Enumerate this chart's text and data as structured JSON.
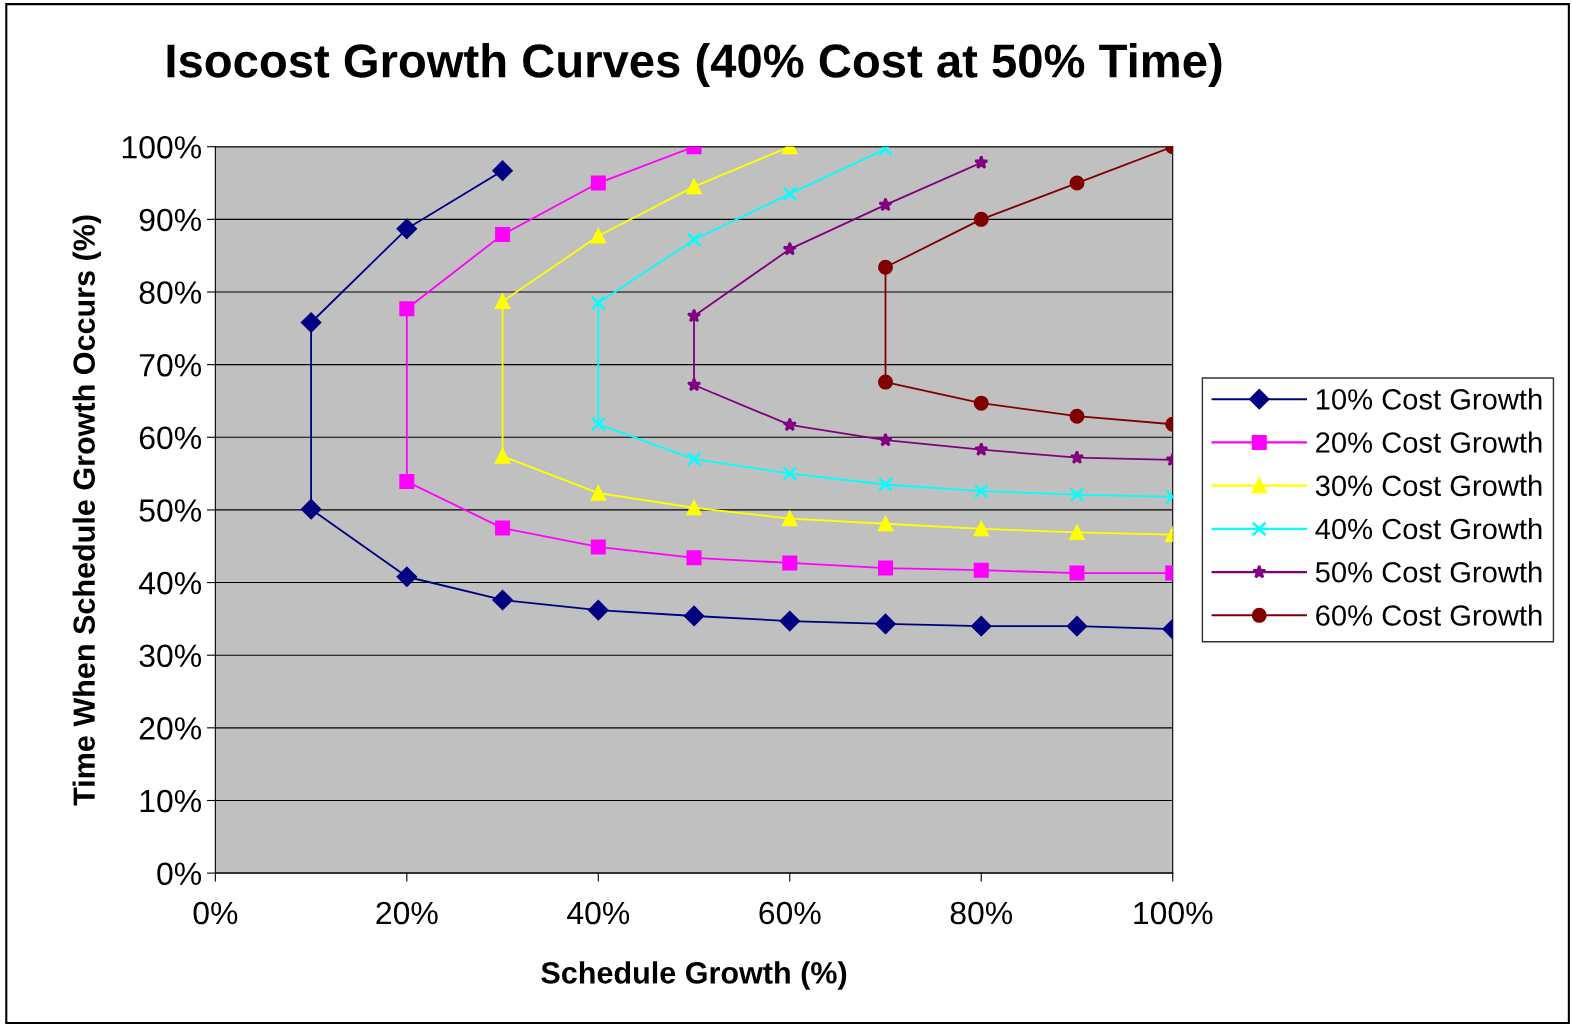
{
  "chart_data": {
    "type": "line",
    "title": "Isocost Growth Curves (40% Cost at 50% Time)",
    "xlabel": "Schedule Growth (%)",
    "ylabel": "Time When Schedule Growth Occurs (%)",
    "xlim": [
      0,
      100
    ],
    "ylim": [
      0,
      100
    ],
    "xticks": [
      {
        "value": 0,
        "label": "0%"
      },
      {
        "value": 20,
        "label": "20%"
      },
      {
        "value": 40,
        "label": "40%"
      },
      {
        "value": 60,
        "label": "60%"
      },
      {
        "value": 80,
        "label": "80%"
      },
      {
        "value": 100,
        "label": "100%"
      }
    ],
    "yticks": [
      {
        "value": 0,
        "label": "0%"
      },
      {
        "value": 10,
        "label": "10%"
      },
      {
        "value": 20,
        "label": "20%"
      },
      {
        "value": 30,
        "label": "30%"
      },
      {
        "value": 40,
        "label": "40%"
      },
      {
        "value": 50,
        "label": "50%"
      },
      {
        "value": 60,
        "label": "60%"
      },
      {
        "value": 70,
        "label": "70%"
      },
      {
        "value": 80,
        "label": "80%"
      },
      {
        "value": 90,
        "label": "90%"
      },
      {
        "value": 100,
        "label": "100%"
      }
    ],
    "grid": "y",
    "legend": "right",
    "line_style": "solid",
    "series": [
      {
        "name": "10% Cost Growth",
        "color": "#000080",
        "marker": "diamond",
        "x": [
          30,
          20,
          10,
          10,
          20,
          30,
          40,
          50,
          60,
          70,
          80,
          90,
          100
        ],
        "values": [
          96.7,
          88.7,
          75.8,
          50.1,
          40.8,
          37.6,
          36.2,
          35.4,
          34.7,
          34.3,
          34.0,
          34.0,
          33.6
        ]
      },
      {
        "name": "20% Cost Growth",
        "color": "#ff00ff",
        "marker": "square",
        "x": [
          50,
          40,
          30,
          20,
          20,
          30,
          40,
          50,
          60,
          70,
          80,
          90,
          100
        ],
        "values": [
          100,
          95.0,
          87.9,
          77.7,
          53.9,
          47.5,
          44.9,
          43.4,
          42.7,
          42.0,
          41.7,
          41.3,
          41.3
        ]
      },
      {
        "name": "30% Cost Growth",
        "color": "#ffff00",
        "marker": "triangle",
        "x": [
          60,
          50,
          40,
          30,
          30,
          40,
          50,
          60,
          70,
          80,
          90,
          100
        ],
        "values": [
          100,
          94.5,
          87.7,
          78.7,
          57.4,
          52.3,
          50.3,
          48.8,
          48.1,
          47.4,
          46.9,
          46.6
        ]
      },
      {
        "name": "40% Cost Growth",
        "color": "#00ffff",
        "marker": "cross",
        "x": [
          70,
          60,
          50,
          40,
          40,
          50,
          60,
          70,
          80,
          90,
          100
        ],
        "values": [
          99.7,
          93.5,
          87.2,
          78.5,
          61.8,
          57.0,
          55.0,
          53.5,
          52.6,
          52.1,
          51.8
        ]
      },
      {
        "name": "50% Cost Growth",
        "color": "#800080",
        "marker": "star",
        "x": [
          80,
          70,
          60,
          50,
          50,
          60,
          70,
          80,
          90,
          100
        ],
        "values": [
          97.8,
          92.0,
          85.9,
          76.7,
          67.2,
          61.7,
          59.6,
          58.3,
          57.2,
          56.9
        ]
      },
      {
        "name": "60% Cost Growth",
        "color": "#800000",
        "marker": "circle",
        "x": [
          100,
          90,
          80,
          70,
          70,
          80,
          90,
          100
        ],
        "values": [
          100,
          95.0,
          90.0,
          83.4,
          67.6,
          64.7,
          62.9,
          61.8
        ]
      }
    ]
  }
}
